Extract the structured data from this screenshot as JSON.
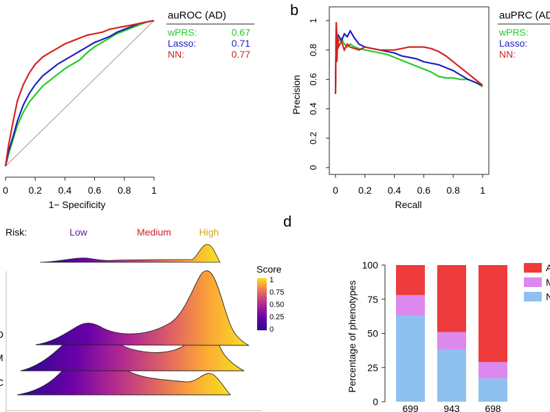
{
  "panels": {
    "b_label": "b",
    "d_label": "d"
  },
  "chart_data": [
    {
      "id": "roc",
      "type": "line",
      "xlabel": "1− Specificity",
      "xlim": [
        0,
        1
      ],
      "ylim": [
        0,
        1
      ],
      "x_ticks": [
        "0",
        "0.2",
        "0.4",
        "0.6",
        "0.8",
        "1"
      ],
      "legend_title": "auROC (AD)",
      "legend_placement": "right",
      "diagonal_reference": true,
      "series": [
        {
          "name": "wPRS:",
          "value_label": "0.67",
          "color": "#22cc22",
          "x": [
            0,
            0.02,
            0.05,
            0.08,
            0.12,
            0.16,
            0.2,
            0.25,
            0.3,
            0.35,
            0.4,
            0.45,
            0.5,
            0.55,
            0.6,
            0.65,
            0.7,
            0.75,
            0.8,
            0.85,
            0.9,
            0.95,
            1
          ],
          "y": [
            0,
            0.08,
            0.18,
            0.28,
            0.37,
            0.44,
            0.49,
            0.55,
            0.59,
            0.63,
            0.67,
            0.7,
            0.73,
            0.78,
            0.82,
            0.85,
            0.88,
            0.91,
            0.93,
            0.95,
            0.97,
            0.99,
            1
          ]
        },
        {
          "name": "Lasso:",
          "value_label": "0.71",
          "color": "#1f1fbf",
          "x": [
            0,
            0.02,
            0.05,
            0.08,
            0.12,
            0.16,
            0.2,
            0.25,
            0.3,
            0.35,
            0.4,
            0.45,
            0.5,
            0.55,
            0.6,
            0.65,
            0.7,
            0.75,
            0.8,
            0.85,
            0.9,
            0.95,
            1
          ],
          "y": [
            0,
            0.1,
            0.2,
            0.31,
            0.42,
            0.5,
            0.56,
            0.62,
            0.66,
            0.7,
            0.73,
            0.76,
            0.79,
            0.82,
            0.85,
            0.87,
            0.89,
            0.92,
            0.94,
            0.96,
            0.98,
            0.99,
            1
          ]
        },
        {
          "name": "NN:",
          "value_label": "0.77",
          "color": "#d42020",
          "x": [
            0,
            0.02,
            0.05,
            0.08,
            0.12,
            0.16,
            0.2,
            0.25,
            0.3,
            0.35,
            0.4,
            0.45,
            0.5,
            0.55,
            0.6,
            0.65,
            0.7,
            0.75,
            0.8,
            0.85,
            0.9,
            0.95,
            1
          ],
          "y": [
            0,
            0.14,
            0.3,
            0.45,
            0.56,
            0.64,
            0.7,
            0.75,
            0.78,
            0.81,
            0.84,
            0.86,
            0.88,
            0.9,
            0.91,
            0.92,
            0.94,
            0.95,
            0.96,
            0.97,
            0.98,
            0.99,
            1
          ]
        }
      ]
    },
    {
      "id": "prc",
      "type": "line",
      "xlabel": "Recall",
      "ylabel": "Precision",
      "xlim": [
        0,
        1
      ],
      "ylim": [
        0,
        1
      ],
      "x_ticks": [
        "0",
        "0.2",
        "0.4",
        "0.6",
        "0.8",
        "1"
      ],
      "y_ticks": [
        "0",
        "0.2",
        "0.4",
        "0.6",
        "0.8",
        "1"
      ],
      "legend_title": "auPRC (AD)",
      "legend_placement": "right",
      "series": [
        {
          "name": "wPRS:",
          "color": "#22cc22",
          "x": [
            0,
            0.005,
            0.01,
            0.02,
            0.04,
            0.06,
            0.08,
            0.1,
            0.13,
            0.16,
            0.2,
            0.25,
            0.3,
            0.35,
            0.4,
            0.45,
            0.5,
            0.55,
            0.6,
            0.65,
            0.7,
            0.75,
            0.8,
            0.85,
            0.9,
            0.95,
            1
          ],
          "y": [
            0.5,
            0.98,
            0.9,
            0.86,
            0.88,
            0.84,
            0.82,
            0.84,
            0.82,
            0.81,
            0.8,
            0.79,
            0.78,
            0.77,
            0.75,
            0.73,
            0.71,
            0.69,
            0.67,
            0.65,
            0.62,
            0.61,
            0.61,
            0.6,
            0.6,
            0.58,
            0.55
          ]
        },
        {
          "name": "Lasso:",
          "color": "#1f1fbf",
          "x": [
            0,
            0.005,
            0.01,
            0.02,
            0.04,
            0.06,
            0.08,
            0.1,
            0.13,
            0.16,
            0.2,
            0.25,
            0.3,
            0.35,
            0.4,
            0.45,
            0.5,
            0.55,
            0.6,
            0.65,
            0.7,
            0.75,
            0.8,
            0.85,
            0.9,
            0.95,
            1
          ],
          "y": [
            0.55,
            0.96,
            0.88,
            0.9,
            0.86,
            0.91,
            0.89,
            0.93,
            0.88,
            0.84,
            0.82,
            0.81,
            0.8,
            0.79,
            0.78,
            0.76,
            0.75,
            0.74,
            0.72,
            0.71,
            0.7,
            0.68,
            0.66,
            0.63,
            0.6,
            0.58,
            0.56
          ]
        },
        {
          "name": "NN:",
          "color": "#d42020",
          "x": [
            0,
            0.005,
            0.01,
            0.015,
            0.02,
            0.04,
            0.06,
            0.08,
            0.1,
            0.13,
            0.16,
            0.2,
            0.25,
            0.3,
            0.35,
            0.4,
            0.45,
            0.5,
            0.55,
            0.6,
            0.65,
            0.7,
            0.75,
            0.8,
            0.85,
            0.9,
            0.95,
            1
          ],
          "y": [
            0.5,
            0.99,
            0.72,
            0.9,
            0.82,
            0.86,
            0.8,
            0.84,
            0.82,
            0.81,
            0.8,
            0.82,
            0.81,
            0.8,
            0.8,
            0.8,
            0.81,
            0.82,
            0.82,
            0.82,
            0.81,
            0.79,
            0.76,
            0.72,
            0.68,
            0.64,
            0.6,
            0.56
          ]
        }
      ]
    },
    {
      "id": "ridge",
      "type": "area",
      "risk_label": "Risk:",
      "risk_levels": [
        {
          "label": "Low",
          "color": "#5b1aa0"
        },
        {
          "label": "Medium",
          "color": "#c8242a"
        },
        {
          "label": "High",
          "color": "#d8a31a"
        }
      ],
      "row_labels": [
        "D",
        "M",
        "C"
      ],
      "colorbar": {
        "title": "Score",
        "ticks": [
          "1",
          "0.75",
          "0.50",
          "0.25",
          "0"
        ],
        "colors": [
          "#0d0887",
          "#6a00a8",
          "#b12a90",
          "#e16462",
          "#fca636",
          "#f0f921"
        ]
      }
    },
    {
      "id": "stacked",
      "type": "bar",
      "ylabel": "Percentage of phenotypes",
      "ylim": [
        0,
        100
      ],
      "y_ticks": [
        "0",
        "25",
        "50",
        "75",
        "100"
      ],
      "categories": [
        "699",
        "943",
        "698"
      ],
      "legend_placement": "right",
      "series": [
        {
          "name": "N",
          "color": "#8ec1ef",
          "values": [
            63,
            38,
            17
          ]
        },
        {
          "name": "M",
          "color": "#dd88ee",
          "values": [
            15,
            13,
            12
          ]
        },
        {
          "name": "A",
          "color": "#ee3b3b",
          "values": [
            22,
            49,
            71
          ]
        }
      ]
    }
  ]
}
